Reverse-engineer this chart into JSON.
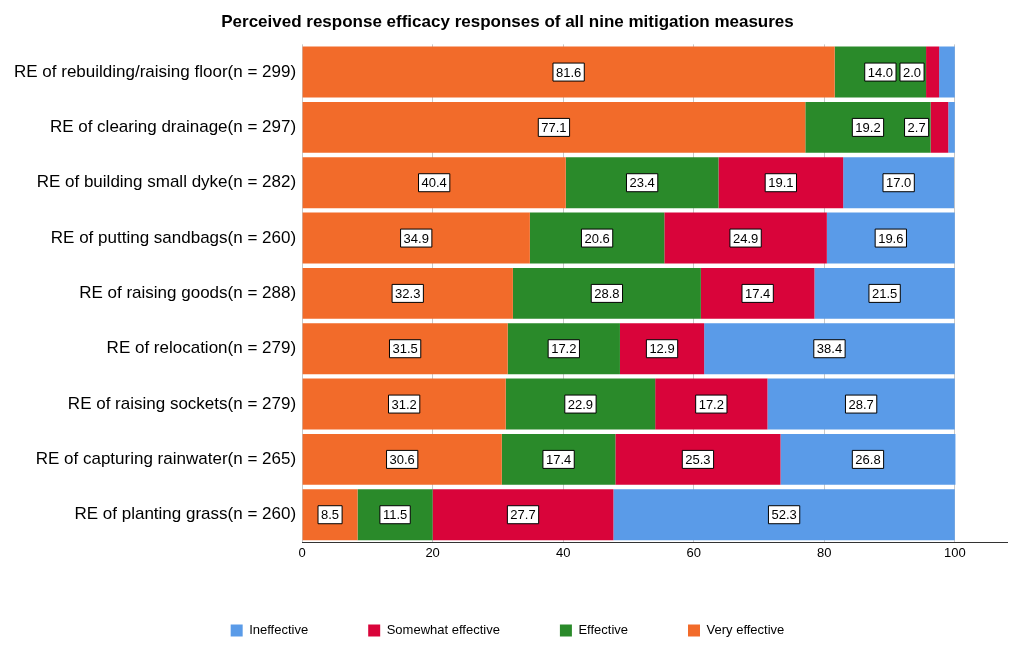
{
  "chart_data": {
    "type": "bar",
    "orientation": "horizontal",
    "stacked": true,
    "title": "Perceived response efficacy responses of all nine mitigation measures",
    "categories": [
      "RE of rebuilding/raising floor(n = 299)",
      "RE of clearing drainage(n = 297)",
      "RE of building small dyke(n = 282)",
      "RE of putting sandbags(n = 260)",
      "RE of raising goods(n = 288)",
      "RE of relocation(n = 279)",
      "RE of raising sockets(n = 279)",
      "RE of capturing rainwater(n = 265)",
      "RE of planting grass(n = 260)"
    ],
    "series": [
      {
        "name": "Very effective",
        "color": "#f26b2a",
        "values": [
          81.6,
          77.1,
          40.4,
          34.9,
          32.3,
          31.5,
          31.2,
          30.6,
          8.5
        ],
        "value_labels": [
          "81.6",
          "77.1",
          "40.4",
          "34.9",
          "32.3",
          "31.5",
          "31.2",
          "30.6",
          "8.5"
        ]
      },
      {
        "name": "Effective",
        "color": "#2a8a2a",
        "values": [
          14.0,
          19.2,
          23.4,
          20.6,
          28.8,
          17.2,
          22.9,
          17.4,
          11.5
        ],
        "value_labels": [
          "14.0",
          "19.2",
          "23.4",
          "20.6",
          "28.8",
          "17.2",
          "22.9",
          "17.4",
          "11.5"
        ]
      },
      {
        "name": "Somewhat effective",
        "color": "#d9043a",
        "values": [
          2.0,
          2.7,
          19.1,
          24.9,
          17.4,
          12.9,
          17.2,
          25.3,
          27.7
        ],
        "value_labels": [
          "2.0",
          "2.7",
          "19.1",
          "24.9",
          "17.4",
          "12.9",
          "17.2",
          "25.3",
          "27.7"
        ]
      },
      {
        "name": "Ineffective",
        "color": "#5a9be8",
        "values": [
          2.4,
          1.0,
          17.0,
          19.6,
          21.5,
          38.4,
          28.7,
          26.8,
          52.3
        ],
        "value_labels": [
          null,
          null,
          "17.0",
          "19.6",
          "21.5",
          "38.4",
          "28.7",
          "26.8",
          "52.3"
        ]
      }
    ],
    "xlim": [
      0,
      108
    ],
    "xticks": [
      0,
      20,
      40,
      60,
      80,
      100
    ],
    "grid": "x",
    "legend": "bottom"
  }
}
